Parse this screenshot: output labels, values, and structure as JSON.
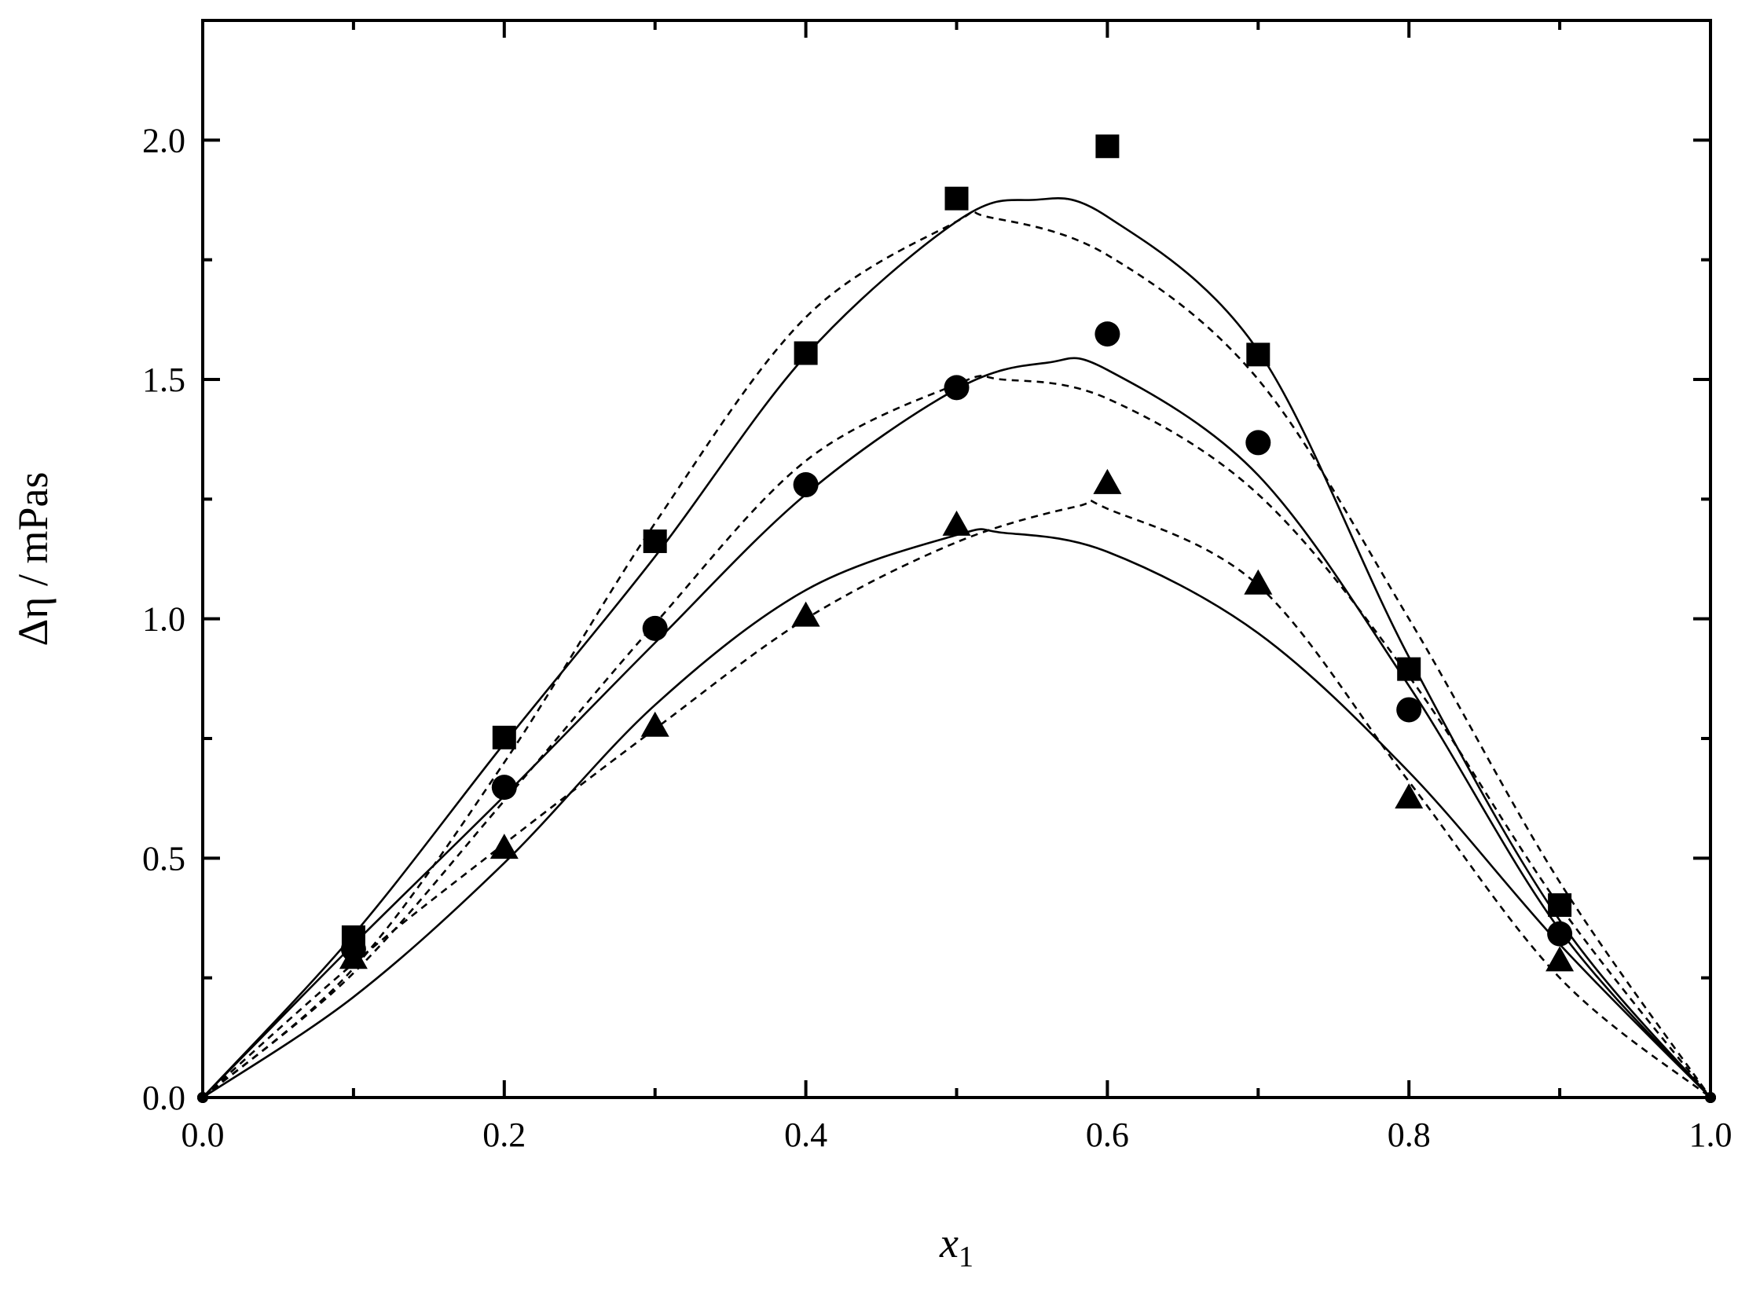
{
  "chart_data": {
    "type": "scatter",
    "xlabel": "x",
    "xlabel_sub": "1",
    "ylabel": "Δη / mPas",
    "xlim": [
      0.0,
      1.0
    ],
    "ylim": [
      0.0,
      2.25
    ],
    "x_ticks": [
      0.0,
      0.2,
      0.4,
      0.6,
      0.8,
      1.0
    ],
    "x_tick_labels": [
      "0.0",
      "0.2",
      "0.4",
      "0.6",
      "0.8",
      "1.0"
    ],
    "y_ticks": [
      0.0,
      0.5,
      1.0,
      1.5,
      2.0
    ],
    "y_tick_labels": [
      "0.0",
      "0.5",
      "1.0",
      "1.5",
      "2.0"
    ],
    "grid": false,
    "legend": "none",
    "series": [
      {
        "marker": "square",
        "x": [
          0.0,
          0.1,
          0.2,
          0.3,
          0.4,
          0.5,
          0.6,
          0.7,
          0.8,
          0.9,
          1.0
        ],
        "y": [
          0.0,
          0.335,
          0.752,
          1.162,
          1.555,
          1.878,
          1.987,
          1.552,
          0.895,
          0.402,
          0.0
        ],
        "fit_solid": [
          [
            0.0,
            0.0
          ],
          [
            0.1,
            0.34
          ],
          [
            0.2,
            0.74
          ],
          [
            0.3,
            1.13
          ],
          [
            0.4,
            1.55
          ],
          [
            0.5,
            1.83
          ],
          [
            0.55,
            1.875
          ],
          [
            0.6,
            1.84
          ],
          [
            0.7,
            1.56
          ],
          [
            0.8,
            0.92
          ],
          [
            0.9,
            0.37
          ],
          [
            1.0,
            0.0
          ]
        ],
        "fit_dashed": [
          [
            0.0,
            0.0
          ],
          [
            0.1,
            0.27
          ],
          [
            0.2,
            0.7
          ],
          [
            0.3,
            1.2
          ],
          [
            0.4,
            1.63
          ],
          [
            0.5,
            1.83
          ],
          [
            0.52,
            1.84
          ],
          [
            0.6,
            1.76
          ],
          [
            0.7,
            1.5
          ],
          [
            0.8,
            1.0
          ],
          [
            0.9,
            0.45
          ],
          [
            1.0,
            0.0
          ]
        ]
      },
      {
        "marker": "circle",
        "x": [
          0.0,
          0.1,
          0.2,
          0.3,
          0.4,
          0.5,
          0.6,
          0.7,
          0.8,
          0.9,
          1.0
        ],
        "y": [
          0.0,
          0.31,
          0.648,
          0.98,
          1.28,
          1.483,
          1.595,
          1.368,
          0.81,
          0.342,
          0.0
        ],
        "fit_solid": [
          [
            0.0,
            0.0
          ],
          [
            0.1,
            0.32
          ],
          [
            0.2,
            0.63
          ],
          [
            0.3,
            0.95
          ],
          [
            0.4,
            1.26
          ],
          [
            0.5,
            1.48
          ],
          [
            0.56,
            1.535
          ],
          [
            0.6,
            1.52
          ],
          [
            0.7,
            1.3
          ],
          [
            0.8,
            0.86
          ],
          [
            0.9,
            0.35
          ],
          [
            1.0,
            0.0
          ]
        ],
        "fit_dashed": [
          [
            0.0,
            0.0
          ],
          [
            0.1,
            0.26
          ],
          [
            0.2,
            0.62
          ],
          [
            0.3,
            0.99
          ],
          [
            0.4,
            1.33
          ],
          [
            0.5,
            1.49
          ],
          [
            0.53,
            1.5
          ],
          [
            0.6,
            1.46
          ],
          [
            0.7,
            1.26
          ],
          [
            0.8,
            0.88
          ],
          [
            0.9,
            0.4
          ],
          [
            1.0,
            0.0
          ]
        ]
      },
      {
        "marker": "triangle",
        "x": [
          0.0,
          0.1,
          0.2,
          0.3,
          0.4,
          0.5,
          0.6,
          0.7,
          0.8,
          0.9,
          1.0
        ],
        "y": [
          0.0,
          0.29,
          0.52,
          0.775,
          1.005,
          1.195,
          1.282,
          1.072,
          0.625,
          0.285,
          0.0
        ],
        "fit_solid": [
          [
            0.0,
            0.0
          ],
          [
            0.1,
            0.21
          ],
          [
            0.2,
            0.49
          ],
          [
            0.3,
            0.82
          ],
          [
            0.4,
            1.06
          ],
          [
            0.5,
            1.175
          ],
          [
            0.53,
            1.18
          ],
          [
            0.6,
            1.14
          ],
          [
            0.7,
            0.97
          ],
          [
            0.8,
            0.68
          ],
          [
            0.9,
            0.32
          ],
          [
            1.0,
            0.0
          ]
        ],
        "fit_dashed": [
          [
            0.0,
            0.0
          ],
          [
            0.1,
            0.28
          ],
          [
            0.2,
            0.53
          ],
          [
            0.3,
            0.77
          ],
          [
            0.4,
            1.0
          ],
          [
            0.5,
            1.16
          ],
          [
            0.58,
            1.235
          ],
          [
            0.6,
            1.23
          ],
          [
            0.7,
            1.07
          ],
          [
            0.8,
            0.66
          ],
          [
            0.9,
            0.25
          ],
          [
            1.0,
            0.0
          ]
        ]
      }
    ]
  }
}
